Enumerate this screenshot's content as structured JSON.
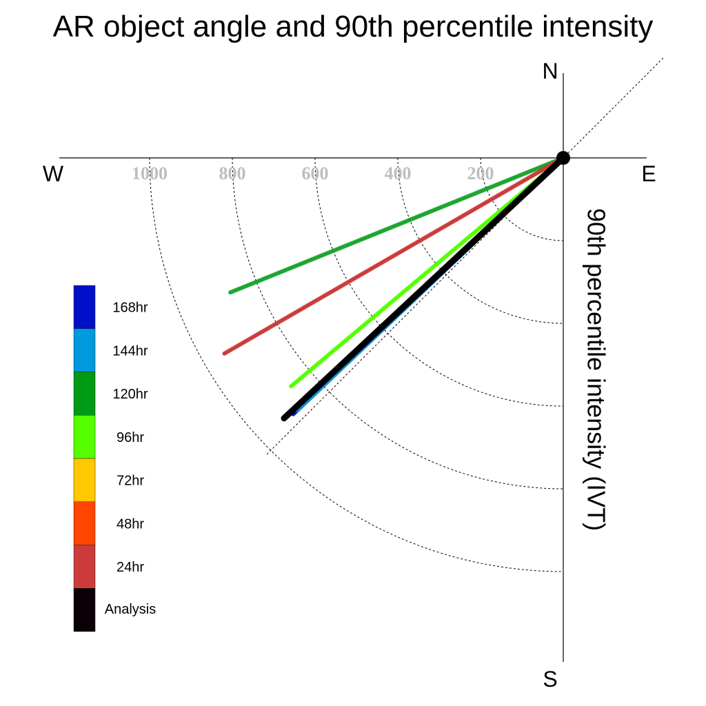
{
  "chart_data": {
    "type": "polar-vector",
    "title": "AR object angle and 90th percentile intensity",
    "axis_label": "90th percentile intensity (IVT)",
    "compass": {
      "north": "N",
      "south": "S",
      "east": "E",
      "west": "W"
    },
    "radial_ticks": [
      200,
      400,
      600,
      800,
      1000
    ],
    "radial_tick_labels": [
      "200",
      "400",
      "600",
      "800",
      "1000"
    ],
    "radial_circles": [
      200,
      400,
      600,
      800,
      1000
    ],
    "r_max": 1200,
    "diagonal_reference_deg": 45,
    "grid": true,
    "legend_placement": "left",
    "legend": [
      {
        "label": "168hr",
        "color": "#0010c8"
      },
      {
        "label": "144hr",
        "color": "#0099dd"
      },
      {
        "label": "120hr",
        "color": "#009a15"
      },
      {
        "label": "96hr",
        "color": "#55ff00"
      },
      {
        "label": "72hr",
        "color": "#ffc800"
      },
      {
        "label": "48hr",
        "color": "#ff4500"
      },
      {
        "label": "24hr",
        "color": "#cc3b3b"
      },
      {
        "label": "Analysis",
        "color": "#0c0008"
      }
    ],
    "series": [
      {
        "name": "120hr",
        "color": "#009a15",
        "opacity": 0.75,
        "width": 5,
        "angle_deg": 22,
        "magnitude": 868
      },
      {
        "name": "24hr",
        "color": "#cc3b3b",
        "opacity": 1,
        "width": 5,
        "angle_deg": 30,
        "magnitude": 946
      },
      {
        "name": "96hr",
        "color": "#55ff00",
        "opacity": 1,
        "width": 5,
        "angle_deg": 40,
        "magnitude": 859
      },
      {
        "name": "168hr",
        "color": "#0010c8",
        "opacity": 1,
        "width": 5,
        "angle_deg": 43.5,
        "magnitude": 900
      },
      {
        "name": "144hr",
        "color": "#0099dd",
        "opacity": 1,
        "width": 5,
        "angle_deg": 43.5,
        "magnitude": 886
      },
      {
        "name": "Analysis",
        "color": "#000000",
        "opacity": 1,
        "width": 9,
        "angle_deg": 43,
        "magnitude": 923
      }
    ]
  }
}
